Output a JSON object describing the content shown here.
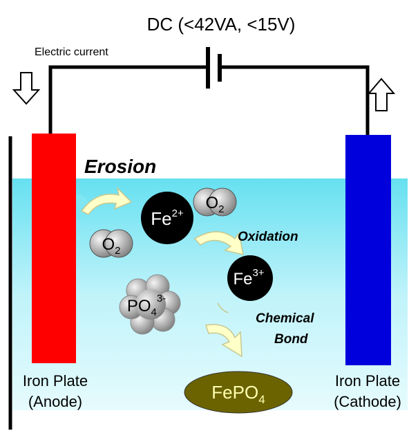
{
  "header": {
    "title": "DC (<42VA, <15V)"
  },
  "labels": {
    "current": "Electric current",
    "erosion": "Erosion",
    "oxidation": "Oxidation",
    "bond": [
      "Chemical",
      "Bond"
    ]
  },
  "anode": {
    "label": [
      "Iron Plate",
      "(Anode)"
    ]
  },
  "cathode": {
    "label": [
      "Iron Plate",
      "(Cathode)"
    ]
  },
  "species": [
    {
      "base": "Fe",
      "sup": "2+"
    },
    {
      "base": "O",
      "sub": "2"
    },
    {
      "base": "O",
      "sub": "2"
    },
    {
      "base": "Fe",
      "sup": "3+"
    },
    {
      "base": "PO",
      "sub": "4",
      "sup": "3-"
    },
    {
      "base": "FePO",
      "sub": "4"
    }
  ]
}
